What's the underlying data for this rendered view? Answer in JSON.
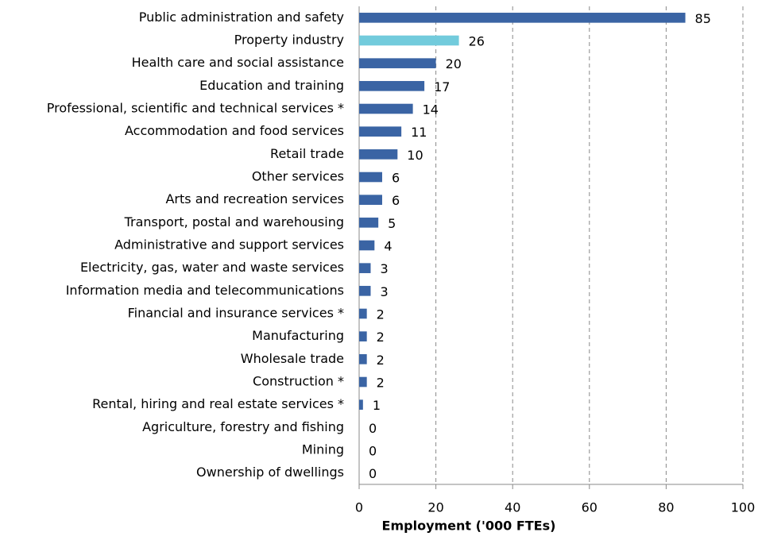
{
  "chart_data": {
    "type": "hbar",
    "x_label": "Employment ('000 FTEs)",
    "categories": [
      "Public administration and safety",
      "Property industry",
      "Health care and social assistance",
      "Education and training",
      "Professional, scientific and technical services *",
      "Accommodation and food services",
      "Retail trade",
      "Other services",
      "Arts and recreation services",
      "Transport, postal and warehousing",
      "Administrative and support services",
      "Electricity, gas, water and waste services",
      "Information media and telecommunications",
      "Financial and insurance services *",
      "Manufacturing",
      "Wholesale trade",
      "Construction *",
      "Rental, hiring and real estate services *",
      "Agriculture, forestry and fishing",
      "Mining",
      "Ownership of dwellings"
    ],
    "values": [
      85,
      26,
      20,
      17,
      14,
      11,
      10,
      6,
      6,
      5,
      4,
      3,
      3,
      2,
      2,
      2,
      2,
      1,
      0,
      0,
      0
    ],
    "colors": [
      "#3a64a4",
      "#72cbdc",
      "#3a64a4",
      "#3a64a4",
      "#3a64a4",
      "#3a64a4",
      "#3a64a4",
      "#3a64a4",
      "#3a64a4",
      "#3a64a4",
      "#3a64a4",
      "#3a64a4",
      "#3a64a4",
      "#3a64a4",
      "#3a64a4",
      "#3a64a4",
      "#3a64a4",
      "#3a64a4",
      "#3a64a4",
      "#3a64a4",
      "#3a64a4"
    ],
    "xlim": [
      0,
      100
    ],
    "xticks": [
      0,
      20,
      40,
      60,
      80,
      100
    ],
    "grid": true
  }
}
